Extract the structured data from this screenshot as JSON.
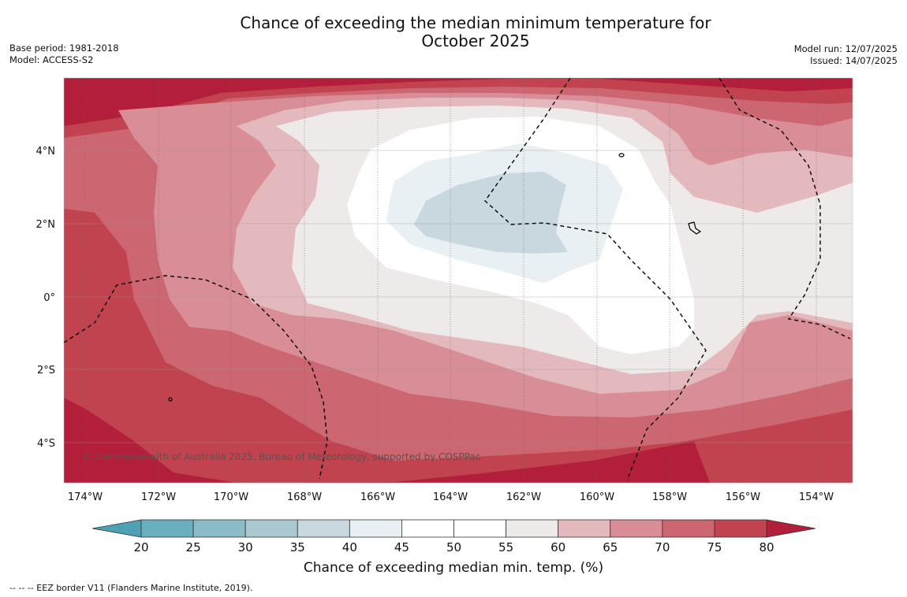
{
  "header": {
    "title_line1": "Chance of exceeding the median minimum temperature for",
    "title_line2": "October 2025",
    "left_meta": [
      "Base period: 1981-2018",
      "Model: ACCESS-S2"
    ],
    "right_meta": [
      "Model run: 12/07/2025",
      "Issued: 14/07/2025"
    ]
  },
  "map": {
    "lon_ticks": [
      "174°W",
      "172°W",
      "170°W",
      "168°W",
      "166°W",
      "164°W",
      "162°W",
      "160°W",
      "158°W",
      "156°W",
      "154°W"
    ],
    "lat_ticks": [
      "4°N",
      "2°N",
      "0°",
      "2°S",
      "4°S"
    ],
    "credit": "© Commonwealth of Australia 2025, Bureau of Meteorology, supported by COSPPac",
    "colors": {
      "c75_80": "#c0434f",
      "c80p": "#b31f3a",
      "c70_75": "#cc6670",
      "c65_70": "#d98d96",
      "c60_65": "#e4b9be",
      "c55_60": "#eeeaea",
      "c50_55": "#ffffff",
      "c40_45": "#e9f0f3",
      "c35_40": "#c8d8de"
    }
  },
  "colorbar": {
    "ticks": [
      "20",
      "25",
      "30",
      "35",
      "40",
      "45",
      "50",
      "55",
      "60",
      "65",
      "70",
      "75",
      "80"
    ],
    "label": "Chance of exceeding median min. temp. (%)",
    "colors": [
      "#6aafc0",
      "#8bbbc8",
      "#aac8d0",
      "#c8d8de",
      "#e9f0f3",
      "#ffffff",
      "#ffffff",
      "#eeeaea",
      "#e4b9be",
      "#d98d96",
      "#cc6670",
      "#c0434f"
    ],
    "low_color": "#4ea1b4",
    "high_color": "#b31f3a"
  },
  "footer": {
    "legend_text": "--  --  -- EEZ border V11 (Flanders Marine Institute, 2019)."
  }
}
